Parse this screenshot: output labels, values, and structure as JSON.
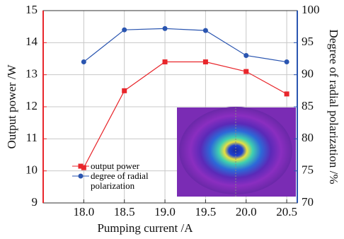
{
  "chart_data": {
    "type": "line",
    "xlabel": "Pumping current /A",
    "ylabel": "Output power /W",
    "y2label": "Degree of radial polarization /%",
    "x": [
      18.0,
      18.5,
      19.0,
      19.5,
      20.0,
      20.5
    ],
    "xlim": [
      17.5,
      20.63
    ],
    "xticks": [
      {
        "value": 18,
        "label": "18.0"
      },
      {
        "value": 18.5,
        "label": "18.5"
      },
      {
        "value": 19,
        "label": "19.0"
      },
      {
        "value": 19.5,
        "label": "19.5"
      },
      {
        "value": 20,
        "label": "20.0"
      },
      {
        "value": 20.5,
        "label": "20.5"
      }
    ],
    "ylim": [
      9,
      15
    ],
    "yticks": [
      9,
      10,
      11,
      12,
      13,
      14,
      15
    ],
    "y2lim": [
      70,
      100
    ],
    "y2ticks": [
      70,
      75,
      80,
      85,
      90,
      95,
      100
    ],
    "grid": true,
    "series": [
      {
        "name": "output power",
        "color": "#e8262b",
        "marker": "square",
        "values": [
          10.1,
          12.5,
          13.4,
          13.4,
          13.1,
          12.4
        ]
      },
      {
        "name": "degree of radial polarization",
        "color": "#2a55b0",
        "marker": "circle",
        "axis": "y2",
        "values": [
          92.0,
          97.0,
          97.2,
          96.9,
          93.0,
          92.0
        ]
      }
    ]
  }
}
